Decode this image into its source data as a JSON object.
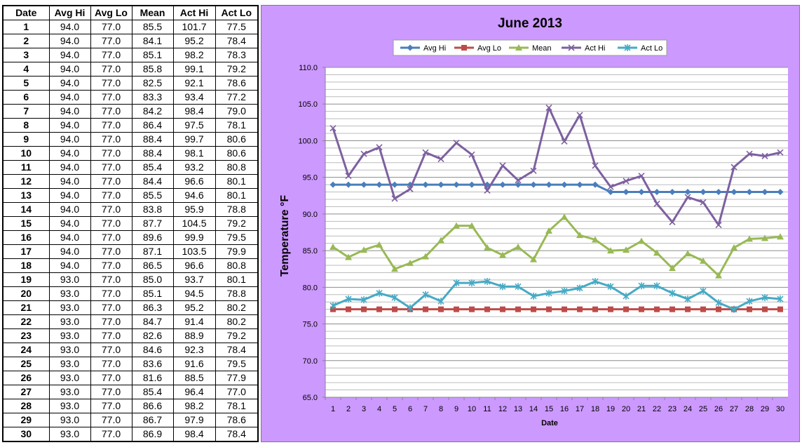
{
  "table": {
    "headers": [
      "Date",
      "Avg Hi",
      "Avg Lo",
      "Mean",
      "Act Hi",
      "Act Lo"
    ],
    "rows": [
      [
        "1",
        "94.0",
        "77.0",
        "85.5",
        "101.7",
        "77.5"
      ],
      [
        "2",
        "94.0",
        "77.0",
        "84.1",
        "95.2",
        "78.4"
      ],
      [
        "3",
        "94.0",
        "77.0",
        "85.1",
        "98.2",
        "78.3"
      ],
      [
        "4",
        "94.0",
        "77.0",
        "85.8",
        "99.1",
        "79.2"
      ],
      [
        "5",
        "94.0",
        "77.0",
        "82.5",
        "92.1",
        "78.6"
      ],
      [
        "6",
        "94.0",
        "77.0",
        "83.3",
        "93.4",
        "77.2"
      ],
      [
        "7",
        "94.0",
        "77.0",
        "84.2",
        "98.4",
        "79.0"
      ],
      [
        "8",
        "94.0",
        "77.0",
        "86.4",
        "97.5",
        "78.1"
      ],
      [
        "9",
        "94.0",
        "77.0",
        "88.4",
        "99.7",
        "80.6"
      ],
      [
        "10",
        "94.0",
        "77.0",
        "88.4",
        "98.1",
        "80.6"
      ],
      [
        "11",
        "94.0",
        "77.0",
        "85.4",
        "93.2",
        "80.8"
      ],
      [
        "12",
        "94.0",
        "77.0",
        "84.4",
        "96.6",
        "80.1"
      ],
      [
        "13",
        "94.0",
        "77.0",
        "85.5",
        "94.6",
        "80.1"
      ],
      [
        "14",
        "94.0",
        "77.0",
        "83.8",
        "95.9",
        "78.8"
      ],
      [
        "15",
        "94.0",
        "77.0",
        "87.7",
        "104.5",
        "79.2"
      ],
      [
        "16",
        "94.0",
        "77.0",
        "89.6",
        "99.9",
        "79.5"
      ],
      [
        "17",
        "94.0",
        "77.0",
        "87.1",
        "103.5",
        "79.9"
      ],
      [
        "18",
        "94.0",
        "77.0",
        "86.5",
        "96.6",
        "80.8"
      ],
      [
        "19",
        "93.0",
        "77.0",
        "85.0",
        "93.7",
        "80.1"
      ],
      [
        "20",
        "93.0",
        "77.0",
        "85.1",
        "94.5",
        "78.8"
      ],
      [
        "21",
        "93.0",
        "77.0",
        "86.3",
        "95.2",
        "80.2"
      ],
      [
        "22",
        "93.0",
        "77.0",
        "84.7",
        "91.4",
        "80.2"
      ],
      [
        "23",
        "93.0",
        "77.0",
        "82.6",
        "88.9",
        "79.2"
      ],
      [
        "24",
        "93.0",
        "77.0",
        "84.6",
        "92.3",
        "78.4"
      ],
      [
        "25",
        "93.0",
        "77.0",
        "83.6",
        "91.6",
        "79.5"
      ],
      [
        "26",
        "93.0",
        "77.0",
        "81.6",
        "88.5",
        "77.9"
      ],
      [
        "27",
        "93.0",
        "77.0",
        "85.4",
        "96.4",
        "77.0"
      ],
      [
        "28",
        "93.0",
        "77.0",
        "86.6",
        "98.2",
        "78.1"
      ],
      [
        "29",
        "93.0",
        "77.0",
        "86.7",
        "97.9",
        "78.6"
      ],
      [
        "30",
        "93.0",
        "77.0",
        "86.9",
        "98.4",
        "78.4"
      ]
    ]
  },
  "chart_data": {
    "type": "line",
    "title": "June 2013",
    "xlabel": "Date",
    "ylabel": "Temperature  °F",
    "x": [
      1,
      2,
      3,
      4,
      5,
      6,
      7,
      8,
      9,
      10,
      11,
      12,
      13,
      14,
      15,
      16,
      17,
      18,
      19,
      20,
      21,
      22,
      23,
      24,
      25,
      26,
      27,
      28,
      29,
      30
    ],
    "xticks": [
      "1",
      "2",
      "3",
      "4",
      "5",
      "6",
      "7",
      "8",
      "9",
      "10",
      "11",
      "12",
      "13",
      "14",
      "15",
      "16",
      "17",
      "18",
      "19",
      "20",
      "21",
      "22",
      "23",
      "24",
      "25",
      "26",
      "27",
      "28",
      "29",
      "30"
    ],
    "ylim": [
      65,
      110
    ],
    "yticks": [
      "65.0",
      "70.0",
      "75.0",
      "80.0",
      "85.0",
      "90.0",
      "95.0",
      "100.0",
      "105.0",
      "110.0"
    ],
    "grid": true,
    "legend_position": "top",
    "series": [
      {
        "name": "Avg Hi",
        "color": "#4a7ebb",
        "marker": "diamond",
        "values": [
          94,
          94,
          94,
          94,
          94,
          94,
          94,
          94,
          94,
          94,
          94,
          94,
          94,
          94,
          94,
          94,
          94,
          94,
          93,
          93,
          93,
          93,
          93,
          93,
          93,
          93,
          93,
          93,
          93,
          93
        ]
      },
      {
        "name": "Avg Lo",
        "color": "#be4b48",
        "marker": "square",
        "values": [
          77,
          77,
          77,
          77,
          77,
          77,
          77,
          77,
          77,
          77,
          77,
          77,
          77,
          77,
          77,
          77,
          77,
          77,
          77,
          77,
          77,
          77,
          77,
          77,
          77,
          77,
          77,
          77,
          77,
          77
        ]
      },
      {
        "name": "Mean",
        "color": "#98b954",
        "marker": "triangle",
        "values": [
          85.5,
          84.1,
          85.1,
          85.8,
          82.5,
          83.3,
          84.2,
          86.4,
          88.4,
          88.4,
          85.4,
          84.4,
          85.5,
          83.8,
          87.7,
          89.6,
          87.1,
          86.5,
          85.0,
          85.1,
          86.3,
          84.7,
          82.6,
          84.6,
          83.6,
          81.6,
          85.4,
          86.6,
          86.7,
          86.9
        ]
      },
      {
        "name": "Act Hi",
        "color": "#7d60a0",
        "marker": "x",
        "values": [
          101.7,
          95.2,
          98.2,
          99.1,
          92.1,
          93.4,
          98.4,
          97.5,
          99.7,
          98.1,
          93.2,
          96.6,
          94.6,
          95.9,
          104.5,
          99.9,
          103.5,
          96.6,
          93.7,
          94.5,
          95.2,
          91.4,
          88.9,
          92.3,
          91.6,
          88.5,
          96.4,
          98.2,
          97.9,
          98.4
        ]
      },
      {
        "name": "Act Lo",
        "color": "#46aac5",
        "marker": "star",
        "values": [
          77.5,
          78.4,
          78.3,
          79.2,
          78.6,
          77.2,
          79.0,
          78.1,
          80.6,
          80.6,
          80.8,
          80.1,
          80.1,
          78.8,
          79.2,
          79.5,
          79.9,
          80.8,
          80.1,
          78.8,
          80.2,
          80.2,
          79.2,
          78.4,
          79.5,
          77.9,
          77.0,
          78.1,
          78.6,
          78.4
        ]
      }
    ]
  }
}
